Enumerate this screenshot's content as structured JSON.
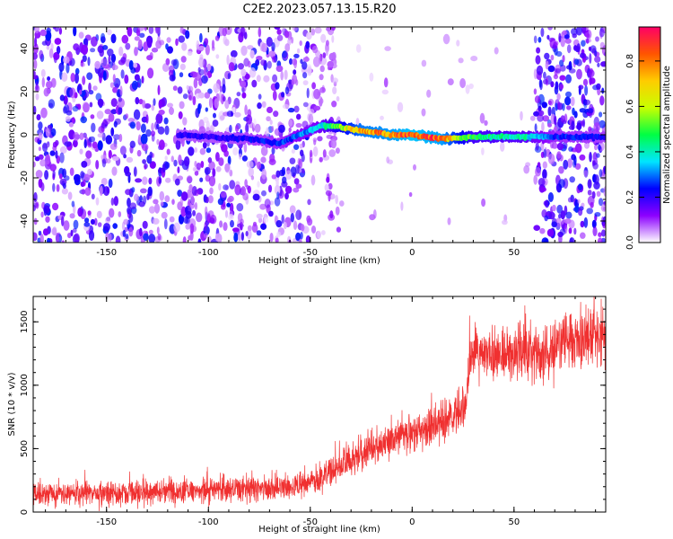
{
  "title": "C2E2.2023.057.13.15.R20",
  "colors": {
    "snr_line": "#f03030",
    "frame": "#000000"
  },
  "chart_data": [
    {
      "type": "heatmap",
      "xlabel": "Height of straight line (km)",
      "ylabel": "Frequency (Hz)",
      "xlim": [
        -186,
        95
      ],
      "ylim": [
        -50,
        50
      ],
      "xticks": [
        -150,
        -100,
        -50,
        0,
        50
      ],
      "xtick_labels": [
        "-150",
        "-100",
        "-50",
        "0",
        "50"
      ],
      "yticks": [
        -40,
        -20,
        0,
        20,
        40
      ],
      "ytick_labels": [
        "-40",
        "-20",
        "0",
        "20",
        "40"
      ],
      "colorbar": {
        "label": "Normalized spectral amplitude",
        "range": [
          0,
          0.95
        ],
        "ticks": [
          0.0,
          0.2,
          0.4,
          0.6,
          0.8
        ],
        "tick_labels": [
          "0.0",
          "0.2",
          "0.4",
          "0.6",
          "0.8"
        ],
        "colormap": [
          "#ffffff",
          "#8c00ff",
          "#0000ff",
          "#00e5ff",
          "#00ff44",
          "#c8ff00",
          "#ffcc00",
          "#ff5500",
          "#ff0066"
        ]
      },
      "signal_trace": {
        "x": [
          -115,
          -100,
          -80,
          -65,
          -55,
          -45,
          -38,
          -25,
          -10,
          0,
          15,
          30,
          55,
          70,
          95
        ],
        "freq": [
          0,
          -1,
          -2,
          -4,
          0,
          4,
          4,
          2,
          0,
          0,
          -2,
          -1,
          -1,
          -1,
          -1
        ],
        "amplitude": [
          0.2,
          0.2,
          0.22,
          0.25,
          0.3,
          0.35,
          0.5,
          0.75,
          0.8,
          0.85,
          0.8,
          0.45,
          0.4,
          0.25,
          0.22
        ]
      },
      "noise_regions": [
        {
          "x_range": [
            -186,
            -50
          ],
          "amplitude": "0.05-0.25, dense"
        },
        {
          "x_range": [
            -50,
            -35
          ],
          "amplitude": "sparse"
        },
        {
          "x_range": [
            60,
            95
          ],
          "amplitude": "0.1-0.25"
        }
      ]
    },
    {
      "type": "line",
      "xlabel": "Height of straight line (km)",
      "ylabel": "SNR (10 * v/v)",
      "xlim": [
        -186,
        95
      ],
      "ylim": [
        0,
        1700
      ],
      "xticks": [
        -150,
        -100,
        -50,
        0,
        50
      ],
      "xtick_labels": [
        "-150",
        "-100",
        "-50",
        "0",
        "50"
      ],
      "yticks": [
        0,
        500,
        1000,
        1500
      ],
      "ytick_labels": [
        "0",
        "500",
        "1000",
        "1500"
      ],
      "series": [
        {
          "name": "SNR",
          "x": [
            -186,
            -150,
            -120,
            -100,
            -80,
            -70,
            -60,
            -50,
            -45,
            -40,
            -35,
            -30,
            -20,
            -10,
            0,
            10,
            20,
            26,
            28,
            30,
            40,
            50,
            60,
            70,
            75,
            80,
            90,
            95
          ],
          "y": [
            150,
            150,
            160,
            170,
            185,
            190,
            200,
            230,
            270,
            320,
            370,
            420,
            500,
            570,
            620,
            680,
            750,
            830,
            1150,
            1250,
            1250,
            1240,
            1260,
            1270,
            1330,
            1350,
            1380,
            1350
          ],
          "spread": 120
        }
      ]
    }
  ]
}
